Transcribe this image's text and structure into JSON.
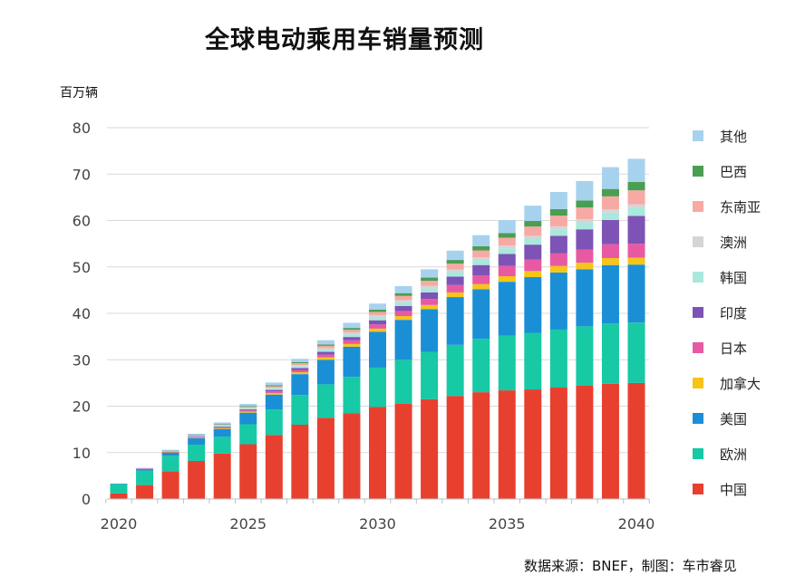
{
  "header": {
    "title": "全球电动乘用车销量预测",
    "y_unit": "百万辆"
  },
  "footer": {
    "source": "数据来源：BNEF，制图：车市睿见"
  },
  "chart_data": {
    "type": "bar",
    "stacked": true,
    "title": "全球电动乘用车销量预测",
    "xlabel": "",
    "ylabel": "百万辆",
    "ylim": [
      0,
      80
    ],
    "yticks": [
      0,
      10,
      20,
      30,
      40,
      50,
      60,
      70,
      80
    ],
    "xtick_labels": [
      "2020",
      "2025",
      "2030",
      "2035",
      "2040"
    ],
    "grid": true,
    "legend_position": "right",
    "categories": [
      "2020",
      "2021",
      "2022",
      "2023",
      "2024",
      "2025",
      "2026",
      "2027",
      "2028",
      "2029",
      "2030",
      "2031",
      "2032",
      "2033",
      "2034",
      "2035",
      "2036",
      "2037",
      "2038",
      "2039",
      "2040"
    ],
    "series": [
      {
        "name": "中国",
        "color": "#e8402f",
        "values": [
          1.2,
          3.0,
          6.0,
          8.2,
          9.8,
          11.8,
          13.8,
          16.0,
          17.5,
          18.5,
          19.8,
          20.5,
          21.5,
          22.2,
          23.0,
          23.4,
          23.6,
          24.0,
          24.4,
          24.8,
          25.0
        ]
      },
      {
        "name": "欧洲",
        "color": "#17c9a5",
        "values": [
          2.0,
          3.1,
          3.3,
          3.5,
          3.6,
          4.3,
          5.5,
          6.4,
          7.2,
          7.8,
          8.5,
          9.5,
          10.2,
          11.0,
          11.5,
          11.8,
          12.2,
          12.5,
          12.8,
          13.0,
          13.0
        ]
      },
      {
        "name": "美国",
        "color": "#1b8fd6",
        "values": [
          0.1,
          0.4,
          0.7,
          1.4,
          1.7,
          2.5,
          3.2,
          4.5,
          5.3,
          6.5,
          7.7,
          8.6,
          9.2,
          10.3,
          10.7,
          11.6,
          12.0,
          12.3,
          12.3,
          12.6,
          12.5
        ]
      },
      {
        "name": "加拿大",
        "color": "#f5c518",
        "values": [
          0.0,
          0.0,
          0.05,
          0.1,
          0.15,
          0.2,
          0.3,
          0.4,
          0.5,
          0.6,
          0.7,
          0.8,
          0.9,
          1.0,
          1.1,
          1.2,
          1.3,
          1.4,
          1.4,
          1.5,
          1.5
        ]
      },
      {
        "name": "日本",
        "color": "#e75aa3",
        "values": [
          0.0,
          0.05,
          0.1,
          0.15,
          0.2,
          0.3,
          0.4,
          0.5,
          0.6,
          0.8,
          0.9,
          1.1,
          1.3,
          1.6,
          1.9,
          2.2,
          2.5,
          2.7,
          2.8,
          3.0,
          3.0
        ]
      },
      {
        "name": "印度",
        "color": "#7d53b5",
        "values": [
          0.0,
          0.0,
          0.05,
          0.1,
          0.15,
          0.2,
          0.3,
          0.4,
          0.6,
          0.7,
          0.9,
          1.1,
          1.4,
          1.8,
          2.2,
          2.6,
          3.2,
          3.8,
          4.4,
          5.2,
          6.0
        ]
      },
      {
        "name": "韩国",
        "color": "#a9e8dd",
        "values": [
          0.0,
          0.0,
          0.05,
          0.1,
          0.15,
          0.2,
          0.3,
          0.4,
          0.5,
          0.6,
          0.7,
          0.8,
          0.9,
          1.0,
          1.1,
          1.2,
          1.3,
          1.4,
          1.5,
          1.6,
          1.8
        ]
      },
      {
        "name": "澳洲",
        "color": "#d5d5d5",
        "values": [
          0.0,
          0.0,
          0.05,
          0.05,
          0.1,
          0.15,
          0.2,
          0.25,
          0.3,
          0.35,
          0.4,
          0.45,
          0.5,
          0.5,
          0.55,
          0.6,
          0.6,
          0.65,
          0.7,
          0.7,
          0.7
        ]
      },
      {
        "name": "东南亚",
        "color": "#f7a9a4",
        "values": [
          0.0,
          0.0,
          0.05,
          0.1,
          0.15,
          0.2,
          0.3,
          0.4,
          0.5,
          0.6,
          0.7,
          0.9,
          1.1,
          1.3,
          1.5,
          1.7,
          2.0,
          2.3,
          2.5,
          2.8,
          3.0
        ]
      },
      {
        "name": "巴西",
        "color": "#4a9e52",
        "values": [
          0.0,
          0.0,
          0.05,
          0.05,
          0.1,
          0.15,
          0.2,
          0.25,
          0.3,
          0.4,
          0.5,
          0.6,
          0.7,
          0.8,
          0.9,
          1.0,
          1.2,
          1.4,
          1.5,
          1.6,
          1.8
        ]
      },
      {
        "name": "其他",
        "color": "#a7d2ee",
        "values": [
          0.0,
          0.15,
          0.2,
          0.3,
          0.4,
          0.5,
          0.6,
          0.7,
          0.9,
          1.1,
          1.3,
          1.5,
          1.8,
          2.0,
          2.4,
          2.8,
          3.3,
          3.7,
          4.2,
          4.7,
          5.0
        ]
      }
    ],
    "legend_order": [
      "其他",
      "巴西",
      "东南亚",
      "澳洲",
      "韩国",
      "印度",
      "日本",
      "加拿大",
      "美国",
      "欧洲",
      "中国"
    ]
  }
}
